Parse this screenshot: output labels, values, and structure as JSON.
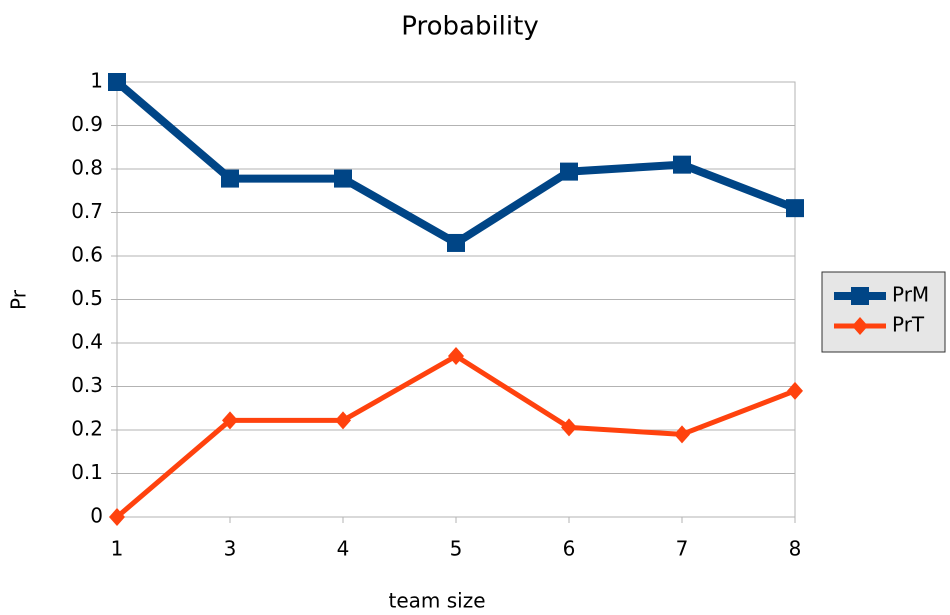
{
  "chart_data": {
    "type": "line",
    "title": "Probability",
    "x_label": "team size",
    "y_label": "Pr",
    "categories": [
      "1",
      "3",
      "4",
      "5",
      "6",
      "7",
      "8"
    ],
    "series": [
      {
        "name": "PrM",
        "color": "#004586",
        "marker": "square",
        "values": [
          1,
          0.778,
          0.778,
          0.63,
          0.794,
          0.81,
          0.71
        ]
      },
      {
        "name": "PrT",
        "color": "#ff420e",
        "marker": "diamond",
        "values": [
          0,
          0.222,
          0.222,
          0.37,
          0.206,
          0.19,
          0.29
        ]
      }
    ],
    "ylim": [
      0,
      1
    ],
    "yticks": [
      0,
      0.1,
      0.2,
      0.3,
      0.4,
      0.5,
      0.6,
      0.7,
      0.8,
      0.9,
      1
    ],
    "grid": true,
    "legend": "right"
  }
}
